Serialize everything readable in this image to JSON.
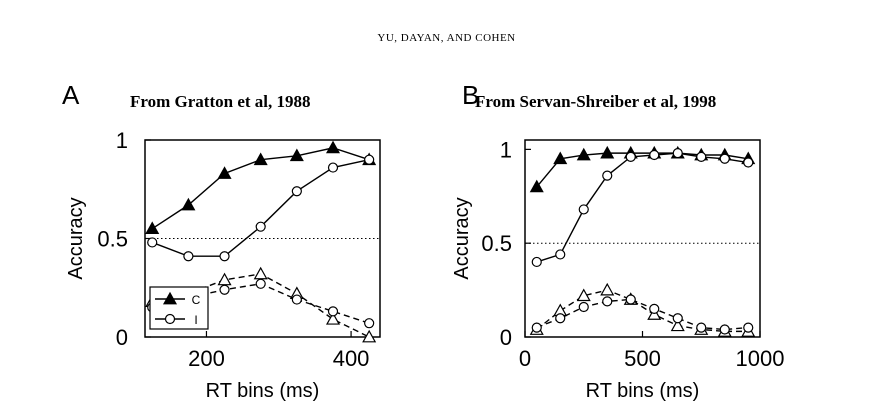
{
  "header": "YU, DAYAN, AND COHEN",
  "panels": [
    {
      "letter": "A",
      "title": "From Gratton et al, 1988"
    },
    {
      "letter": "B",
      "title": "From Servan-Shreiber et al, 1998"
    }
  ],
  "chart_data": [
    {
      "type": "line",
      "title": "From Gratton et al, 1988",
      "xlabel": "RT bins (ms)",
      "ylabel": "Accuracy",
      "xlim": [
        115,
        440
      ],
      "ylim": [
        0,
        1
      ],
      "xticks": [
        "200",
        "400"
      ],
      "xtick_values": [
        200,
        400
      ],
      "yticks": [
        "0",
        "0.5",
        "1"
      ],
      "ytick_values": [
        0,
        0.5,
        1
      ],
      "reference_line": 0.5,
      "legend": {
        "position": "bottom-left",
        "entries": [
          "C",
          "I"
        ]
      },
      "x": [
        125,
        175,
        225,
        275,
        325,
        375,
        425
      ],
      "series": [
        {
          "name": "C",
          "marker": "triangle",
          "fill": "filled",
          "dashed": false,
          "values": [
            0.55,
            0.67,
            0.83,
            0.9,
            0.92,
            0.96,
            0.9
          ]
        },
        {
          "name": "I",
          "marker": "circle",
          "fill": "open",
          "dashed": false,
          "values": [
            0.48,
            0.41,
            0.41,
            0.56,
            0.74,
            0.86,
            0.9
          ]
        },
        {
          "name": "C",
          "marker": "triangle",
          "fill": "open",
          "dashed": true,
          "values": [
            0.18,
            0.22,
            0.29,
            0.32,
            0.22,
            0.09,
            0.0
          ]
        },
        {
          "name": "I",
          "marker": "circle",
          "fill": "open",
          "dashed": true,
          "values": [
            0.15,
            0.2,
            0.24,
            0.27,
            0.19,
            0.13,
            0.07
          ]
        }
      ]
    },
    {
      "type": "line",
      "title": "From Servan-Shreiber et al, 1998",
      "xlabel": "RT bins (ms)",
      "ylabel": "Accuracy",
      "xlim": [
        0,
        1000
      ],
      "ylim": [
        0,
        1.05
      ],
      "xticks": [
        "0",
        "500",
        "1000"
      ],
      "xtick_values": [
        0,
        500,
        1000
      ],
      "yticks": [
        "0",
        "0.5",
        "1"
      ],
      "ytick_values": [
        0,
        0.5,
        1
      ],
      "reference_line": 0.5,
      "x": [
        50,
        150,
        250,
        350,
        450,
        550,
        650,
        750,
        850,
        950
      ],
      "series": [
        {
          "name": "C",
          "marker": "triangle",
          "fill": "filled",
          "dashed": false,
          "values": [
            0.8,
            0.95,
            0.97,
            0.98,
            0.98,
            0.98,
            0.98,
            0.97,
            0.97,
            0.95
          ]
        },
        {
          "name": "I",
          "marker": "circle",
          "fill": "open",
          "dashed": false,
          "values": [
            0.4,
            0.44,
            0.68,
            0.86,
            0.96,
            0.97,
            0.98,
            0.96,
            0.95,
            0.93
          ]
        },
        {
          "name": "C",
          "marker": "triangle",
          "fill": "open",
          "dashed": true,
          "values": [
            0.04,
            0.14,
            0.22,
            0.25,
            0.2,
            0.12,
            0.06,
            0.04,
            0.03,
            0.03
          ]
        },
        {
          "name": "I",
          "marker": "circle",
          "fill": "open",
          "dashed": true,
          "values": [
            0.05,
            0.1,
            0.16,
            0.19,
            0.2,
            0.15,
            0.1,
            0.05,
            0.04,
            0.05
          ]
        }
      ]
    }
  ]
}
